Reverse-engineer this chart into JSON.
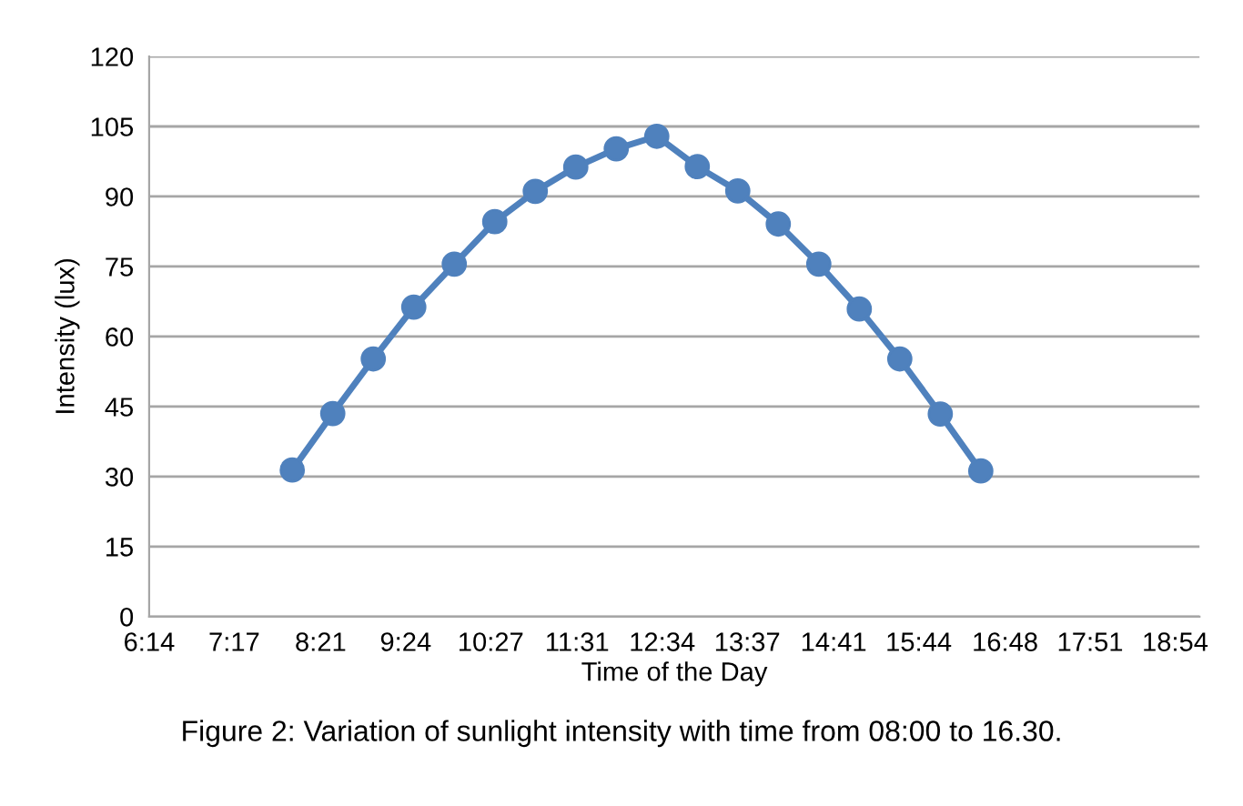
{
  "chart_data": {
    "type": "line",
    "xlabel": "Time of the Day",
    "ylabel": "Intensity (lux)",
    "annotations": [
      "Figure 2: Variation of sunlight intensity with time from 08:00 to 16.30."
    ],
    "x": [
      8.0,
      8.5,
      9.0,
      9.5,
      10.0,
      10.5,
      11.0,
      11.5,
      12.0,
      12.5,
      13.0,
      13.5,
      14.0,
      14.5,
      15.0,
      15.5,
      16.0,
      16.5
    ],
    "series": [
      {
        "color": "#4f81bd",
        "values": [
          31.4,
          43.5,
          55.2,
          66.3,
          75.5,
          84.6,
          91.1,
          96.3,
          100.2,
          102.9,
          96.4,
          91.2,
          84.1,
          75.5,
          65.9,
          55.2,
          43.4,
          31.2
        ]
      }
    ],
    "marker": "circle",
    "line_style": "solid",
    "grid": "y",
    "legend": false,
    "xlim": [
      6.2333,
      19.2
    ],
    "xticks": [
      {
        "value": 6.2333,
        "label": "6:14"
      },
      {
        "value": 7.2833,
        "label": "7:17"
      },
      {
        "value": 8.35,
        "label": "8:21"
      },
      {
        "value": 9.4,
        "label": "9:24"
      },
      {
        "value": 10.45,
        "label": "10:27"
      },
      {
        "value": 11.5167,
        "label": "11:31"
      },
      {
        "value": 12.5667,
        "label": "12:34"
      },
      {
        "value": 13.6167,
        "label": "13:37"
      },
      {
        "value": 14.6833,
        "label": "14:41"
      },
      {
        "value": 15.7333,
        "label": "15:44"
      },
      {
        "value": 16.8,
        "label": "16:48"
      },
      {
        "value": 17.85,
        "label": "17:51"
      },
      {
        "value": 18.9,
        "label": "18:54"
      }
    ],
    "ylim": [
      0,
      120
    ],
    "yticks": [
      0,
      15,
      30,
      45,
      60,
      75,
      90,
      105,
      120
    ]
  }
}
